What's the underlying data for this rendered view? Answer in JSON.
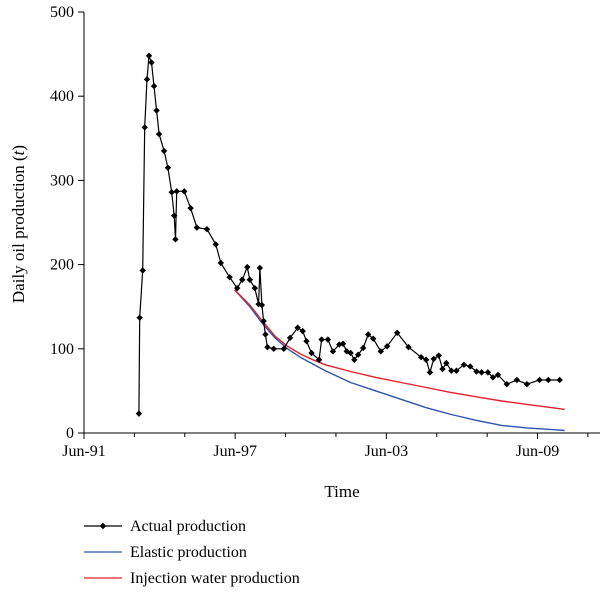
{
  "chart_data": {
    "type": "line",
    "title": "",
    "xlabel": "Time",
    "ylabel_prefix": "Daily oil production (",
    "ylabel_unit": "t",
    "ylabel_suffix": ")",
    "x_unit": "year (decimal)",
    "xlim": [
      1991.42,
      2011.9
    ],
    "ylim": [
      0,
      500
    ],
    "xticks": [
      {
        "value": 1991.42,
        "label": "Jun-91"
      },
      {
        "value": 1997.42,
        "label": "Jun-97"
      },
      {
        "value": 2003.42,
        "label": "Jun-03"
      },
      {
        "value": 2009.42,
        "label": "Jun-09"
      }
    ],
    "yticks": [
      0,
      100,
      200,
      300,
      400,
      500
    ],
    "grid": false,
    "legend_position": "bottom",
    "series": [
      {
        "name": "Actual production",
        "color": "#000000",
        "marker": "diamond",
        "x": [
          1993.6,
          1993.63,
          1993.75,
          1993.83,
          1993.92,
          1994.0,
          1994.1,
          1994.2,
          1994.3,
          1994.4,
          1994.6,
          1994.75,
          1994.9,
          1995.0,
          1995.05,
          1995.1,
          1995.4,
          1995.65,
          1995.9,
          1996.3,
          1996.65,
          1996.85,
          1997.2,
          1997.5,
          1997.7,
          1997.9,
          1998.0,
          1998.2,
          1998.35,
          1998.4,
          1998.48,
          1998.55,
          1998.62,
          1998.7,
          1998.95,
          1999.35,
          1999.6,
          1999.9,
          2000.1,
          2000.25,
          2000.45,
          2000.75,
          2000.85,
          2001.1,
          2001.3,
          2001.55,
          2001.7,
          2001.85,
          2002.0,
          2002.15,
          2002.3,
          2002.5,
          2002.7,
          2002.9,
          2003.2,
          2003.45,
          2003.85,
          2004.3,
          2004.8,
          2005.0,
          2005.15,
          2005.3,
          2005.5,
          2005.65,
          2005.8,
          2006.0,
          2006.2,
          2006.5,
          2006.75,
          2007.0,
          2007.2,
          2007.45,
          2007.65,
          2007.85,
          2008.2,
          2008.6,
          2009.0,
          2009.5,
          2009.85,
          2010.3
        ],
        "y": [
          23,
          137,
          193,
          363,
          420,
          448,
          440,
          412,
          383,
          355,
          335,
          315,
          286,
          258,
          230,
          287,
          287,
          267,
          244,
          242,
          224,
          202,
          185,
          172,
          182,
          197,
          182,
          172,
          153,
          196,
          152,
          133,
          117,
          102,
          100,
          100,
          113,
          125,
          121,
          109,
          95,
          87,
          111,
          111,
          97,
          105,
          106,
          97,
          95,
          87,
          93,
          101,
          117,
          112,
          97,
          103,
          119,
          102,
          90,
          87,
          72,
          88,
          92,
          76,
          83,
          74,
          74,
          81,
          79,
          73,
          72,
          72,
          66,
          69,
          58,
          63,
          58,
          63,
          63,
          63
        ]
      },
      {
        "name": "Elastic production",
        "color": "#2e54a8",
        "x": [
          1997.4,
          1998.0,
          1998.5,
          1999.0,
          1999.5,
          2000.0,
          2000.5,
          2001.0,
          2001.5,
          2002.0,
          2003.0,
          2004.0,
          2005.0,
          2006.0,
          2007.0,
          2008.0,
          2009.0,
          2010.0,
          2010.5
        ],
        "y": [
          170,
          150,
          130,
          113,
          100,
          90,
          82,
          74,
          67,
          60,
          50,
          40,
          30,
          22,
          15,
          9,
          6,
          4,
          3
        ]
      },
      {
        "name": "Injection water production",
        "color": "#e0202a",
        "x": [
          1997.4,
          1998.0,
          1998.5,
          1999.0,
          1999.5,
          2000.0,
          2000.5,
          2001.0,
          2001.5,
          2002.0,
          2003.0,
          2004.0,
          2005.0,
          2006.0,
          2007.0,
          2008.0,
          2009.0,
          2010.0,
          2010.5
        ],
        "y": [
          170,
          152,
          133,
          115,
          103,
          94,
          87,
          81,
          77,
          73,
          66,
          60,
          54,
          48,
          43,
          38,
          34,
          30,
          28
        ]
      }
    ]
  }
}
